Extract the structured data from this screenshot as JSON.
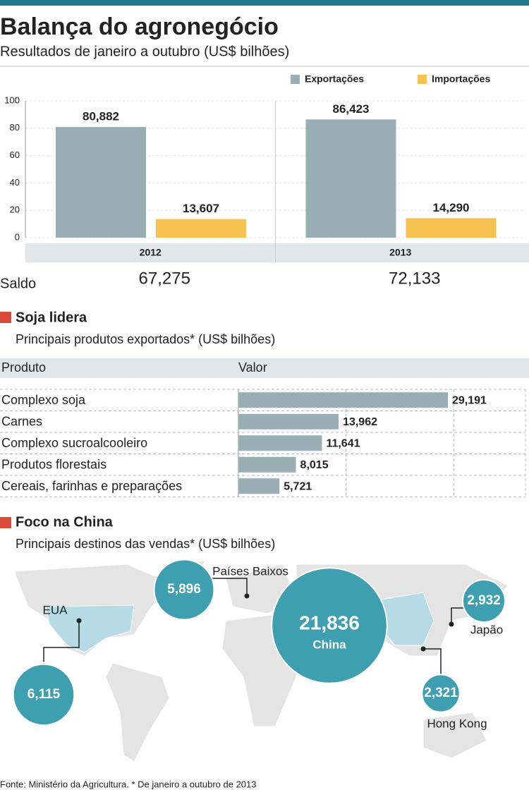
{
  "title": "Balança do agronegócio",
  "subtitle": "Resultados de janeiro a outubro (US$ bilhões)",
  "chart_data": [
    {
      "type": "bar",
      "categories": [
        "2012",
        "2013"
      ],
      "series": [
        {
          "name": "Exportações",
          "color": "#9aafb5",
          "values": [
            80.882,
            86.423
          ],
          "value_labels": [
            "80,882",
            "86,423"
          ]
        },
        {
          "name": "Importações",
          "color": "#f6c252",
          "values": [
            13.607,
            14.29
          ],
          "value_labels": [
            "13,607",
            "14,290"
          ]
        }
      ],
      "ylim": [
        0,
        100
      ],
      "yticks": [
        0,
        20,
        40,
        60,
        80,
        100
      ],
      "grid": true,
      "saldo": {
        "label": "Saldo",
        "values": [
          67.275,
          72.133
        ],
        "value_labels": [
          "67,275",
          "72,133"
        ]
      }
    },
    {
      "type": "hbar",
      "title": "Soja lidera",
      "subtitle": "Principais produtos exportados* (US$ bilhões)",
      "columns": [
        "Produto",
        "Valor"
      ],
      "categories": [
        "Complexo soja",
        "Carnes",
        "Complexo sucroalcooleiro",
        "Produtos florestais",
        "Cereais, farinhas e preparações"
      ],
      "values": [
        29.191,
        13.962,
        11.641,
        8.015,
        5.721
      ],
      "value_labels": [
        "29,191",
        "13,962",
        "11,641",
        "8,015",
        "5,721"
      ],
      "color": "#9aafb5",
      "xlim": [
        0,
        40
      ],
      "xticks": [
        15,
        30
      ],
      "grid": true
    },
    {
      "type": "bubble",
      "title": "Foco na China",
      "subtitle": "Principais destinos das vendas* (US$ bilhões)",
      "categories": [
        "EUA",
        "Países Baixos",
        "China",
        "Japão",
        "Hong Kong"
      ],
      "values": [
        6.115,
        5.896,
        21.836,
        2.932,
        2.321
      ],
      "value_labels": [
        "6,115",
        "5,896",
        "21,836",
        "2,932",
        "2,321"
      ],
      "color": "#3e9fb1"
    }
  ],
  "footer": "Fonte: Ministério da Agricultura. * De janeiro a outubro de 2013"
}
